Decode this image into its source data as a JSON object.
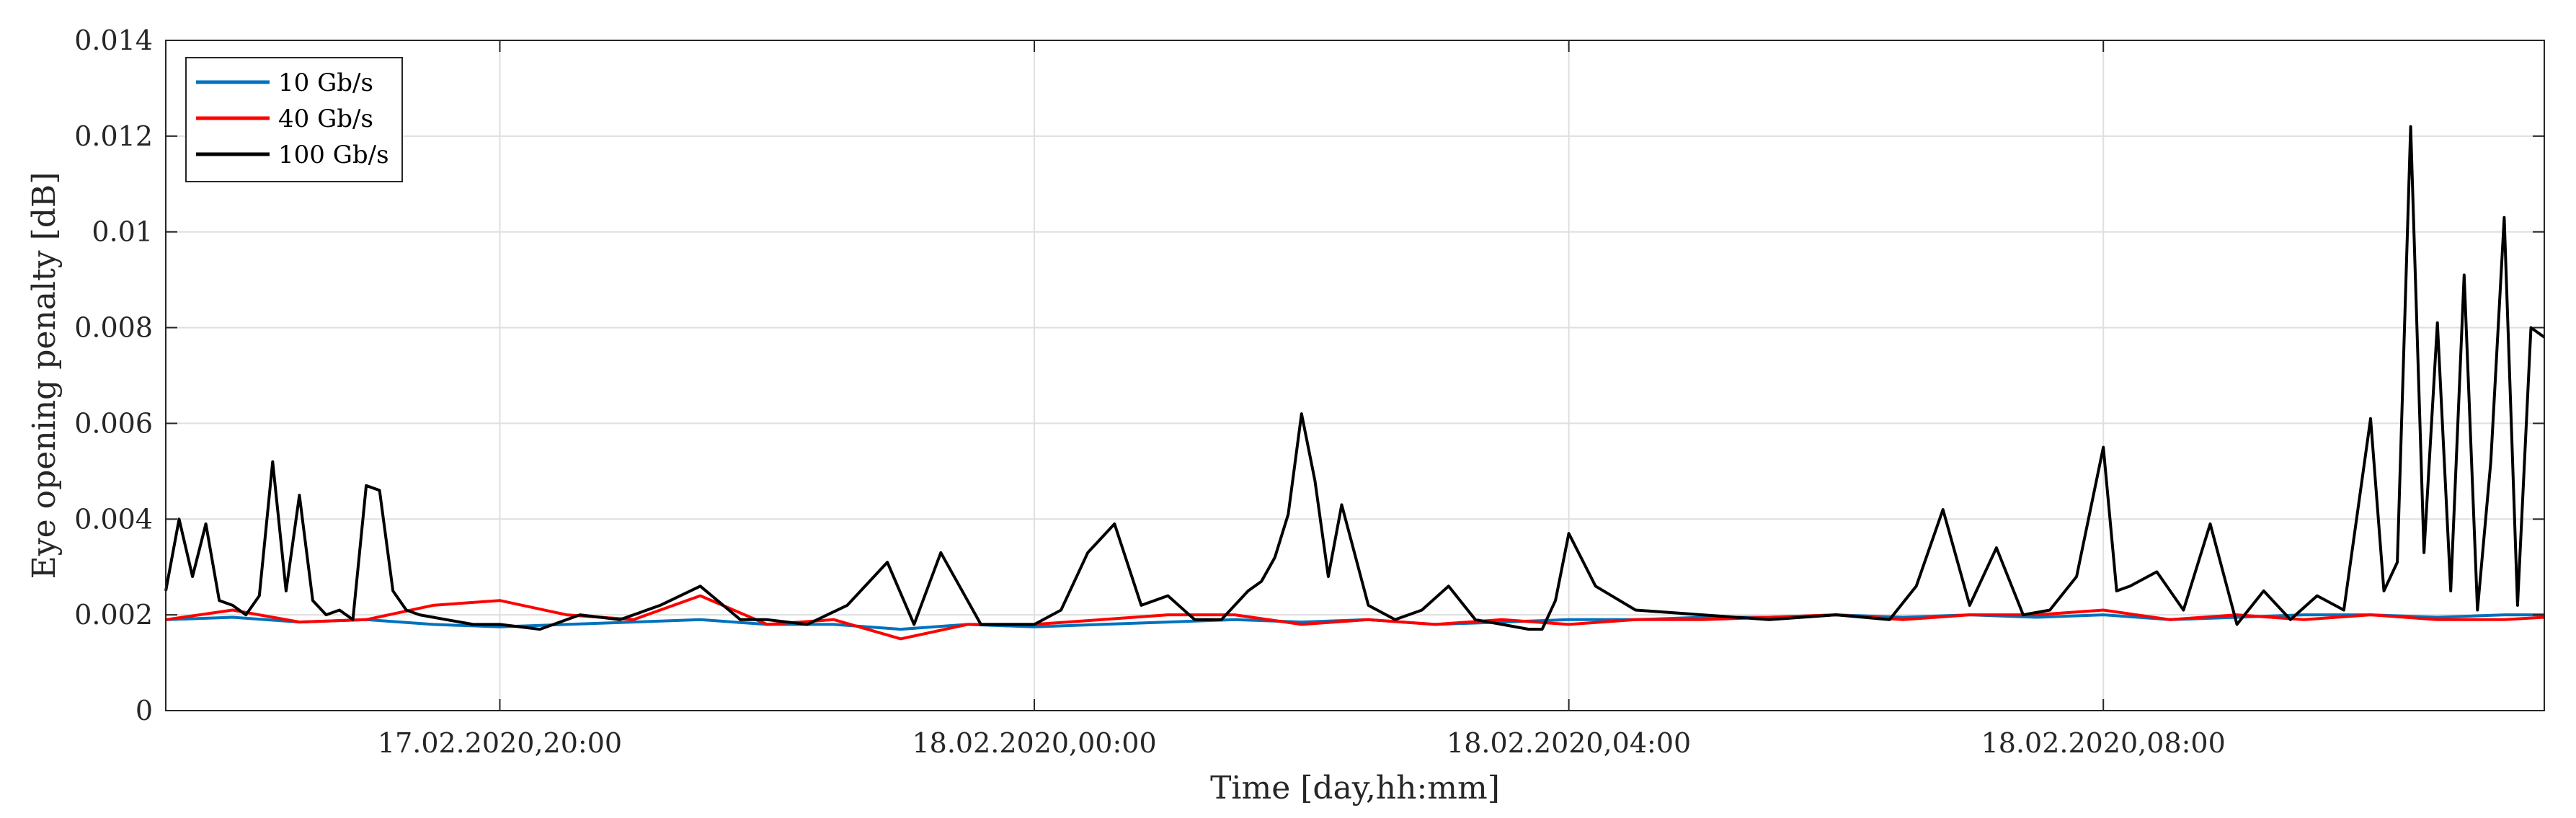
{
  "chart_data": {
    "type": "line",
    "title": "",
    "xlabel": "Time [day,hh:mm]",
    "ylabel": "Eye opening penalty [dB]",
    "x_ticks": [
      "17.02.2020,20:00",
      "18.02.2020,00:00",
      "18.02.2020,04:00",
      "18.02.2020,08:00"
    ],
    "x_tick_hours": [
      20,
      24,
      28,
      32
    ],
    "xlim_hours": [
      17.5,
      35.3
    ],
    "x_unit_note": "x values are hours since 17.02.2020 00:00",
    "ylim": [
      0,
      0.014
    ],
    "y_ticks": [
      "0",
      "0.002",
      "0.004",
      "0.006",
      "0.008",
      "0.01",
      "0.012",
      "0.014"
    ],
    "grid": true,
    "legend_position": "top-left",
    "series": [
      {
        "name": "10 Gb/s",
        "color": "#0072BD",
        "x": [
          17.5,
          18.0,
          18.5,
          19.0,
          19.5,
          20.0,
          20.5,
          21.0,
          21.5,
          22.0,
          22.5,
          23.0,
          23.5,
          24.0,
          24.5,
          25.0,
          25.5,
          26.0,
          26.5,
          27.0,
          27.5,
          28.0,
          28.5,
          29.0,
          29.5,
          30.0,
          30.5,
          31.0,
          31.5,
          32.0,
          32.5,
          33.0,
          33.5,
          34.0,
          34.5,
          35.0,
          35.3
        ],
        "y": [
          0.0019,
          0.00195,
          0.00185,
          0.0019,
          0.0018,
          0.00175,
          0.0018,
          0.00185,
          0.0019,
          0.0018,
          0.0018,
          0.0017,
          0.0018,
          0.00175,
          0.0018,
          0.00185,
          0.0019,
          0.00185,
          0.0019,
          0.0018,
          0.00185,
          0.0019,
          0.0019,
          0.00195,
          0.00195,
          0.002,
          0.00195,
          0.002,
          0.00195,
          0.002,
          0.0019,
          0.00195,
          0.002,
          0.002,
          0.00195,
          0.002,
          0.002
        ]
      },
      {
        "name": "40 Gb/s",
        "color": "#FF0000",
        "x": [
          17.5,
          18.0,
          18.5,
          19.0,
          19.5,
          20.0,
          20.5,
          21.0,
          21.5,
          22.0,
          22.5,
          23.0,
          23.5,
          24.0,
          24.5,
          25.0,
          25.5,
          26.0,
          26.5,
          27.0,
          27.5,
          28.0,
          28.5,
          29.0,
          29.5,
          30.0,
          30.5,
          31.0,
          31.5,
          32.0,
          32.5,
          33.0,
          33.5,
          34.0,
          34.5,
          35.0,
          35.3
        ],
        "y": [
          0.0019,
          0.0021,
          0.00185,
          0.0019,
          0.0022,
          0.0023,
          0.002,
          0.0019,
          0.0024,
          0.0018,
          0.0019,
          0.0015,
          0.0018,
          0.0018,
          0.0019,
          0.002,
          0.002,
          0.0018,
          0.0019,
          0.0018,
          0.0019,
          0.0018,
          0.0019,
          0.0019,
          0.00195,
          0.002,
          0.0019,
          0.002,
          0.002,
          0.0021,
          0.0019,
          0.002,
          0.0019,
          0.002,
          0.0019,
          0.0019,
          0.00195
        ]
      },
      {
        "name": "100 Gb/s",
        "color": "#000000",
        "x": [
          17.5,
          17.6,
          17.7,
          17.8,
          17.9,
          18.0,
          18.1,
          18.2,
          18.3,
          18.4,
          18.5,
          18.6,
          18.7,
          18.8,
          18.9,
          19.0,
          19.1,
          19.2,
          19.3,
          19.4,
          19.6,
          19.8,
          20.0,
          20.3,
          20.6,
          20.9,
          21.2,
          21.5,
          21.8,
          22.0,
          22.3,
          22.6,
          22.9,
          23.1,
          23.3,
          23.6,
          23.9,
          24.0,
          24.2,
          24.4,
          24.6,
          24.8,
          25.0,
          25.2,
          25.4,
          25.5,
          25.6,
          25.7,
          25.8,
          25.9,
          26.0,
          26.1,
          26.2,
          26.3,
          26.5,
          26.7,
          26.9,
          27.1,
          27.3,
          27.5,
          27.7,
          27.8,
          27.9,
          28.0,
          28.2,
          28.5,
          29.0,
          29.5,
          30.0,
          30.4,
          30.6,
          30.8,
          31.0,
          31.2,
          31.4,
          31.6,
          31.8,
          32.0,
          32.1,
          32.2,
          32.4,
          32.6,
          32.8,
          33.0,
          33.2,
          33.4,
          33.6,
          33.8,
          34.0,
          34.1,
          34.2,
          34.3,
          34.4,
          34.5,
          34.6,
          34.7,
          34.8,
          34.9,
          35.0,
          35.1,
          35.2,
          35.3
        ],
        "y": [
          0.0025,
          0.004,
          0.0028,
          0.0039,
          0.0023,
          0.0022,
          0.002,
          0.0024,
          0.0052,
          0.0025,
          0.0045,
          0.0023,
          0.002,
          0.0021,
          0.0019,
          0.0047,
          0.0046,
          0.0025,
          0.0021,
          0.002,
          0.0019,
          0.0018,
          0.0018,
          0.0017,
          0.002,
          0.0019,
          0.0022,
          0.0026,
          0.0019,
          0.0019,
          0.0018,
          0.0022,
          0.0031,
          0.0018,
          0.0033,
          0.0018,
          0.0018,
          0.0018,
          0.0021,
          0.0033,
          0.0039,
          0.0022,
          0.0024,
          0.0019,
          0.0019,
          0.0022,
          0.0025,
          0.0027,
          0.0032,
          0.0041,
          0.0062,
          0.0048,
          0.0028,
          0.0043,
          0.0022,
          0.0019,
          0.0021,
          0.0026,
          0.0019,
          0.0018,
          0.0017,
          0.0017,
          0.0023,
          0.0037,
          0.0026,
          0.0021,
          0.002,
          0.0019,
          0.002,
          0.0019,
          0.0026,
          0.0042,
          0.0022,
          0.0034,
          0.002,
          0.0021,
          0.0028,
          0.0055,
          0.0025,
          0.0026,
          0.0029,
          0.0021,
          0.0039,
          0.0018,
          0.0025,
          0.0019,
          0.0024,
          0.0021,
          0.0061,
          0.0025,
          0.0031,
          0.0122,
          0.0033,
          0.0081,
          0.0025,
          0.0091,
          0.0021,
          0.0052,
          0.0103,
          0.0022,
          0.008,
          0.0078
        ]
      }
    ]
  }
}
